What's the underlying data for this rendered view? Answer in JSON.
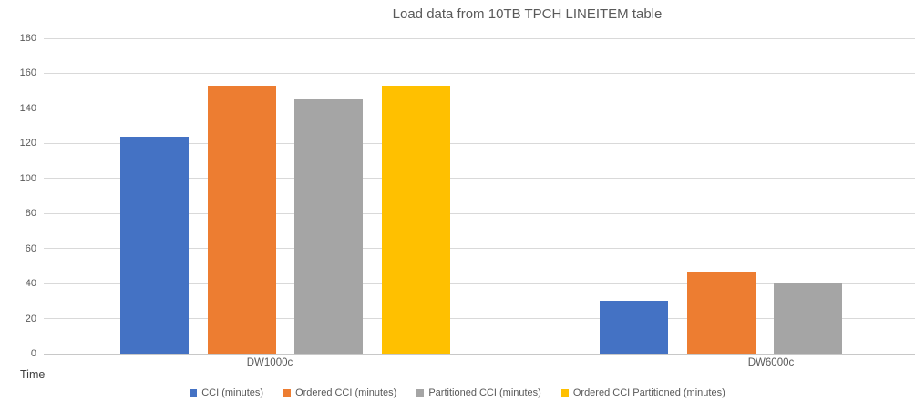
{
  "chart_data": {
    "type": "bar",
    "title": "Load data from 10TB TPCH LINEITEM table",
    "categories": [
      "DW1000c",
      "DW6000c"
    ],
    "series": [
      {
        "name": "CCI (minutes)",
        "color": "#4472C4",
        "values": [
          124,
          30
        ]
      },
      {
        "name": "Ordered CCI (minutes)",
        "color": "#ED7D31",
        "values": [
          153,
          47
        ]
      },
      {
        "name": "Partitioned CCI (minutes)",
        "color": "#A5A5A5",
        "values": [
          145,
          40
        ]
      },
      {
        "name": "Ordered CCI Partitioned (minutes)",
        "color": "#FFC000",
        "values": [
          153,
          null
        ]
      }
    ],
    "ylim": [
      0,
      180
    ],
    "ytick_step": 20,
    "yticks": [
      0,
      20,
      40,
      60,
      80,
      100,
      120,
      140,
      160,
      180
    ],
    "ylabel": "Time",
    "xlabel": "",
    "grid": true,
    "legend_position": "bottom"
  },
  "palette": {
    "background": "#FFFFFF",
    "grid_color": "#D9D9D9",
    "axis_color": "#C8C8C8",
    "text_color": "#595959"
  }
}
